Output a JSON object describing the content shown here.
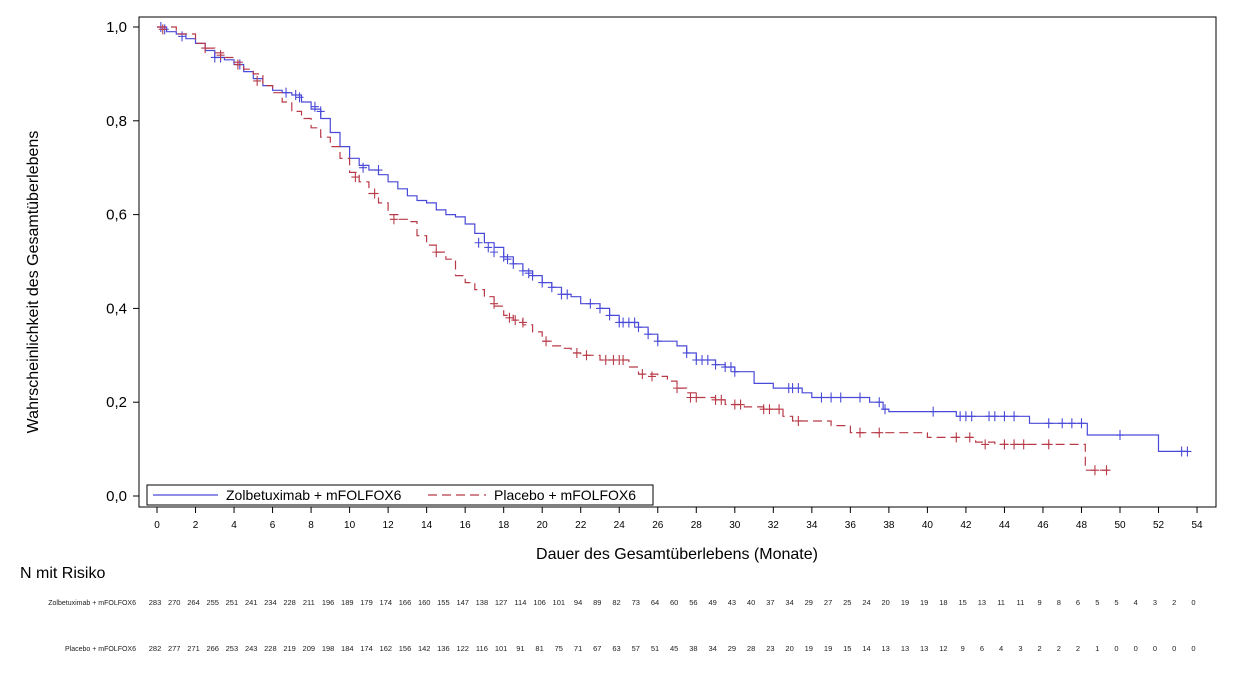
{
  "chart_data": {
    "type": "line",
    "subtype": "kaplan-meier",
    "xlabel": "Dauer des Gesamtüberlebens (Monate)",
    "ylabel": "Wahrscheinlichkeit des Gesamtüberlebens",
    "xlim": [
      0,
      54
    ],
    "ylim": [
      0,
      1
    ],
    "xticks": [
      0,
      2,
      4,
      6,
      8,
      10,
      12,
      14,
      16,
      18,
      20,
      22,
      24,
      26,
      28,
      30,
      32,
      34,
      36,
      38,
      40,
      42,
      44,
      46,
      48,
      50,
      52,
      54
    ],
    "xtick_labels": [
      "0",
      "2",
      "4",
      "6",
      "8",
      "10",
      "12",
      "14",
      "16",
      "18",
      "20",
      "22",
      "24",
      "26",
      "28",
      "30",
      "32",
      "34",
      "36",
      "38",
      "40",
      "42",
      "44",
      "46",
      "48",
      "50",
      "52",
      "54"
    ],
    "yticks": [
      0,
      0.2,
      0.4,
      0.6,
      0.8,
      1.0
    ],
    "ytick_labels": [
      "0,0",
      "0,2",
      "0,4",
      "0,6",
      "0,8",
      "1,0"
    ],
    "grid": false,
    "legend_position": "bottom-left",
    "series": [
      {
        "name": "Zolbetuximab + mFOLFOX6",
        "color": "#4a4ad8",
        "line_style": "solid",
        "steps": [
          [
            0,
            1.0
          ],
          [
            0.5,
            0.99
          ],
          [
            1,
            0.985
          ],
          [
            1.5,
            0.975
          ],
          [
            2,
            0.965
          ],
          [
            2.5,
            0.95
          ],
          [
            3,
            0.935
          ],
          [
            3.5,
            0.93
          ],
          [
            4,
            0.92
          ],
          [
            4.5,
            0.905
          ],
          [
            5,
            0.89
          ],
          [
            5.5,
            0.875
          ],
          [
            6,
            0.865
          ],
          [
            6.5,
            0.86
          ],
          [
            7,
            0.855
          ],
          [
            7.5,
            0.84
          ],
          [
            8,
            0.825
          ],
          [
            8.5,
            0.805
          ],
          [
            9,
            0.775
          ],
          [
            9.5,
            0.745
          ],
          [
            10,
            0.72
          ],
          [
            10.5,
            0.705
          ],
          [
            11,
            0.695
          ],
          [
            11.5,
            0.685
          ],
          [
            12,
            0.67
          ],
          [
            12.5,
            0.655
          ],
          [
            13,
            0.64
          ],
          [
            13.5,
            0.63
          ],
          [
            14,
            0.625
          ],
          [
            14.5,
            0.61
          ],
          [
            15,
            0.6
          ],
          [
            15.5,
            0.595
          ],
          [
            16,
            0.58
          ],
          [
            16.5,
            0.56
          ],
          [
            17,
            0.54
          ],
          [
            17.5,
            0.53
          ],
          [
            18,
            0.51
          ],
          [
            18.5,
            0.495
          ],
          [
            19,
            0.48
          ],
          [
            19.5,
            0.47
          ],
          [
            20,
            0.455
          ],
          [
            20.5,
            0.445
          ],
          [
            21,
            0.43
          ],
          [
            21.5,
            0.425
          ],
          [
            22,
            0.41
          ],
          [
            23,
            0.4
          ],
          [
            23.5,
            0.385
          ],
          [
            24,
            0.37
          ],
          [
            25,
            0.36
          ],
          [
            25.5,
            0.345
          ],
          [
            26,
            0.33
          ],
          [
            27,
            0.32
          ],
          [
            27.5,
            0.305
          ],
          [
            28,
            0.29
          ],
          [
            29,
            0.28
          ],
          [
            29.5,
            0.275
          ],
          [
            30,
            0.265
          ],
          [
            31,
            0.24
          ],
          [
            32,
            0.23
          ],
          [
            33.5,
            0.22
          ],
          [
            34,
            0.21
          ],
          [
            37,
            0.2
          ],
          [
            37.7,
            0.185
          ],
          [
            38,
            0.18
          ],
          [
            41.5,
            0.17
          ],
          [
            45.3,
            0.155
          ],
          [
            48.3,
            0.13
          ],
          [
            52,
            0.095
          ],
          [
            53.5,
            0.095
          ]
        ],
        "censors": [
          [
            0.2,
            1.0
          ],
          [
            0.4,
            0.995
          ],
          [
            1.3,
            0.98
          ],
          [
            3,
            0.935
          ],
          [
            3.3,
            0.935
          ],
          [
            4.3,
            0.92
          ],
          [
            6.7,
            0.86
          ],
          [
            7.2,
            0.855
          ],
          [
            7.4,
            0.85
          ],
          [
            8.2,
            0.83
          ],
          [
            8.5,
            0.82
          ],
          [
            10.7,
            0.7
          ],
          [
            11.5,
            0.695
          ],
          [
            16.7,
            0.54
          ],
          [
            17.2,
            0.53
          ],
          [
            17.5,
            0.52
          ],
          [
            18,
            0.51
          ],
          [
            18.2,
            0.505
          ],
          [
            18.5,
            0.495
          ],
          [
            19,
            0.48
          ],
          [
            19.3,
            0.475
          ],
          [
            19.5,
            0.47
          ],
          [
            20,
            0.455
          ],
          [
            20.5,
            0.445
          ],
          [
            21,
            0.43
          ],
          [
            21.3,
            0.43
          ],
          [
            22.5,
            0.41
          ],
          [
            23,
            0.4
          ],
          [
            23.5,
            0.385
          ],
          [
            24,
            0.37
          ],
          [
            24.2,
            0.37
          ],
          [
            24.5,
            0.37
          ],
          [
            24.8,
            0.37
          ],
          [
            25,
            0.36
          ],
          [
            25.5,
            0.345
          ],
          [
            26,
            0.33
          ],
          [
            27.5,
            0.305
          ],
          [
            28,
            0.29
          ],
          [
            28.3,
            0.29
          ],
          [
            28.6,
            0.29
          ],
          [
            29,
            0.28
          ],
          [
            29.5,
            0.275
          ],
          [
            29.8,
            0.275
          ],
          [
            30,
            0.265
          ],
          [
            32.8,
            0.23
          ],
          [
            33,
            0.23
          ],
          [
            33.3,
            0.23
          ],
          [
            34.5,
            0.21
          ],
          [
            35,
            0.21
          ],
          [
            35.5,
            0.21
          ],
          [
            36.5,
            0.21
          ],
          [
            37.5,
            0.2
          ],
          [
            37.8,
            0.185
          ],
          [
            40.3,
            0.18
          ],
          [
            41.7,
            0.17
          ],
          [
            42,
            0.17
          ],
          [
            42.3,
            0.17
          ],
          [
            43.2,
            0.17
          ],
          [
            43.5,
            0.17
          ],
          [
            44,
            0.17
          ],
          [
            44.5,
            0.17
          ],
          [
            46.3,
            0.155
          ],
          [
            47,
            0.155
          ],
          [
            47.5,
            0.155
          ],
          [
            48,
            0.155
          ],
          [
            50,
            0.13
          ],
          [
            53.2,
            0.095
          ],
          [
            53.5,
            0.095
          ]
        ]
      },
      {
        "name": "Placebo + mFOLFOX6",
        "color": "#b83a48",
        "line_style": "dashed",
        "steps": [
          [
            0,
            1.0
          ],
          [
            1,
            0.985
          ],
          [
            2,
            0.965
          ],
          [
            2.5,
            0.955
          ],
          [
            3,
            0.945
          ],
          [
            3.5,
            0.935
          ],
          [
            4,
            0.925
          ],
          [
            4.5,
            0.91
          ],
          [
            5,
            0.9
          ],
          [
            5.5,
            0.875
          ],
          [
            6,
            0.86
          ],
          [
            6.5,
            0.84
          ],
          [
            7,
            0.82
          ],
          [
            7.5,
            0.805
          ],
          [
            8,
            0.785
          ],
          [
            8.5,
            0.765
          ],
          [
            9,
            0.745
          ],
          [
            9.5,
            0.72
          ],
          [
            10,
            0.69
          ],
          [
            10.5,
            0.67
          ],
          [
            11,
            0.645
          ],
          [
            11.5,
            0.625
          ],
          [
            12,
            0.6
          ],
          [
            12.5,
            0.59
          ],
          [
            13,
            0.585
          ],
          [
            13.5,
            0.555
          ],
          [
            14,
            0.535
          ],
          [
            14.5,
            0.52
          ],
          [
            15,
            0.505
          ],
          [
            15.5,
            0.47
          ],
          [
            16,
            0.455
          ],
          [
            16.5,
            0.44
          ],
          [
            17,
            0.425
          ],
          [
            17.5,
            0.405
          ],
          [
            18,
            0.385
          ],
          [
            18.5,
            0.375
          ],
          [
            19,
            0.365
          ],
          [
            19.5,
            0.35
          ],
          [
            20,
            0.33
          ],
          [
            20.5,
            0.32
          ],
          [
            21,
            0.315
          ],
          [
            21.5,
            0.305
          ],
          [
            22,
            0.3
          ],
          [
            23,
            0.29
          ],
          [
            24.5,
            0.275
          ],
          [
            25,
            0.26
          ],
          [
            26,
            0.255
          ],
          [
            26.5,
            0.245
          ],
          [
            27,
            0.23
          ],
          [
            27.5,
            0.22
          ],
          [
            28,
            0.21
          ],
          [
            29,
            0.205
          ],
          [
            29.5,
            0.195
          ],
          [
            30.5,
            0.19
          ],
          [
            31.5,
            0.185
          ],
          [
            32.5,
            0.17
          ],
          [
            33,
            0.16
          ],
          [
            35,
            0.15
          ],
          [
            36,
            0.135
          ],
          [
            40,
            0.125
          ],
          [
            42.5,
            0.115
          ],
          [
            43.5,
            0.11
          ],
          [
            48.2,
            0.055
          ],
          [
            49.5,
            0.055
          ]
        ],
        "censors": [
          [
            0.3,
            0.995
          ],
          [
            2.5,
            0.955
          ],
          [
            3.3,
            0.94
          ],
          [
            4.2,
            0.92
          ],
          [
            5.2,
            0.885
          ],
          [
            10.3,
            0.68
          ],
          [
            11.3,
            0.645
          ],
          [
            12.3,
            0.59
          ],
          [
            14.5,
            0.52
          ],
          [
            17.5,
            0.41
          ],
          [
            18.3,
            0.38
          ],
          [
            18.6,
            0.375
          ],
          [
            19,
            0.37
          ],
          [
            20.2,
            0.33
          ],
          [
            21.8,
            0.305
          ],
          [
            22.3,
            0.3
          ],
          [
            23.3,
            0.29
          ],
          [
            23.7,
            0.29
          ],
          [
            24,
            0.29
          ],
          [
            24.2,
            0.29
          ],
          [
            25.2,
            0.26
          ],
          [
            25.7,
            0.255
          ],
          [
            27,
            0.23
          ],
          [
            27.7,
            0.21
          ],
          [
            28,
            0.21
          ],
          [
            29,
            0.205
          ],
          [
            29.3,
            0.205
          ],
          [
            30,
            0.195
          ],
          [
            30.3,
            0.195
          ],
          [
            31.5,
            0.185
          ],
          [
            31.8,
            0.185
          ],
          [
            32.3,
            0.185
          ],
          [
            33.3,
            0.16
          ],
          [
            36.5,
            0.135
          ],
          [
            37.5,
            0.135
          ],
          [
            41.5,
            0.125
          ],
          [
            42.2,
            0.125
          ],
          [
            43,
            0.11
          ],
          [
            44,
            0.11
          ],
          [
            44.5,
            0.11
          ],
          [
            45,
            0.11
          ],
          [
            46.3,
            0.11
          ],
          [
            48.7,
            0.055
          ],
          [
            49.3,
            0.055
          ]
        ]
      }
    ]
  },
  "risk_table": {
    "title": "N mit Risiko",
    "rows": [
      {
        "label": "Zolbetuximab + mFOLFOX6",
        "values": [
          "283",
          "270",
          "264",
          "255",
          "251",
          "241",
          "234",
          "228",
          "211",
          "196",
          "189",
          "179",
          "174",
          "166",
          "160",
          "155",
          "147",
          "138",
          "127",
          "114",
          "106",
          "101",
          "94",
          "89",
          "82",
          "73",
          "64",
          "60",
          "56",
          "49",
          "43",
          "40",
          "37",
          "34",
          "29",
          "27",
          "25",
          "24",
          "20",
          "19",
          "19",
          "18",
          "15",
          "13",
          "11",
          "11",
          "9",
          "8",
          "6",
          "5",
          "5",
          "4",
          "3",
          "2",
          "0"
        ]
      },
      {
        "label": "Placebo + mFOLFOX6",
        "values": [
          "282",
          "277",
          "271",
          "266",
          "253",
          "243",
          "228",
          "219",
          "209",
          "198",
          "184",
          "174",
          "162",
          "156",
          "142",
          "136",
          "122",
          "116",
          "101",
          "91",
          "81",
          "75",
          "71",
          "67",
          "63",
          "57",
          "51",
          "45",
          "38",
          "34",
          "29",
          "28",
          "23",
          "20",
          "19",
          "19",
          "15",
          "14",
          "13",
          "13",
          "13",
          "12",
          "9",
          "6",
          "4",
          "3",
          "2",
          "2",
          "2",
          "1",
          "0",
          "0",
          "0",
          "0",
          "0"
        ]
      }
    ]
  }
}
